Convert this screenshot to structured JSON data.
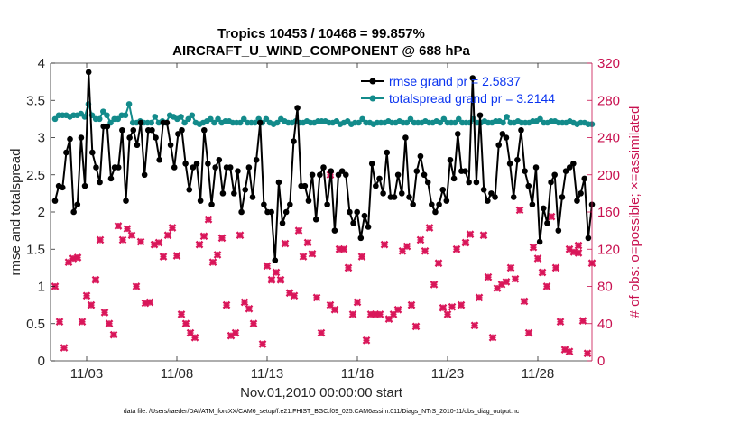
{
  "chart_data": {
    "type": "line",
    "title": [
      "Tropics 10453 / 10468 = 99.857%",
      "AIRCRAFT_U_WIND_COMPONENT @ 688 hPa"
    ],
    "xlabel": "Nov.01,2010 00:00:00 start",
    "ylabel_left": "rmse and totalspread",
    "ylabel_right": "# of obs: o=possible; ×=assimilated",
    "footnote": "data file: /Users/raeder/DAI/ATM_forcXX/CAM6_setup/f.e21.FHIST_BGC.f09_025.CAM6assim.011/Diags_NTrS_2010-11/obs_diag_output.nc",
    "x_ticks": [
      {
        "label": "11/03",
        "day": 3
      },
      {
        "label": "11/08",
        "day": 8
      },
      {
        "label": "11/13",
        "day": 13
      },
      {
        "label": "11/18",
        "day": 18
      },
      {
        "label": "11/23",
        "day": 23
      },
      {
        "label": "11/28",
        "day": 28
      }
    ],
    "xlim": [
      1,
      31
    ],
    "ylim_left": [
      0,
      4
    ],
    "ylim_right": [
      0,
      320
    ],
    "y_ticks_left": [
      "0",
      "0.5",
      "1",
      "1.5",
      "2",
      "2.5",
      "3",
      "3.5",
      "4"
    ],
    "y_ticks_right": [
      "0",
      "40",
      "80",
      "120",
      "160",
      "200",
      "240",
      "280",
      "320"
    ],
    "colors": {
      "rmse": "#000000",
      "spread": "#138b8b",
      "obs": "#d9175a",
      "right_axis": "#c8104f",
      "legend_text": "#0a34f0"
    },
    "legend": [
      {
        "name": "rmse",
        "label": "rmse grand pr = 2.5837"
      },
      {
        "name": "spread",
        "label": "totalspread grand pr = 3.2144"
      }
    ],
    "series": {
      "rmse": [
        2.15,
        2.35,
        2.33,
        2.8,
        2.98,
        2.0,
        2.1,
        3.0,
        2.35,
        3.88,
        2.8,
        2.6,
        2.4,
        3.15,
        3.15,
        2.45,
        2.6,
        2.6,
        3.1,
        2.15,
        3.0,
        3.1,
        2.9,
        3.2,
        2.5,
        3.1,
        3.1,
        3.0,
        2.7,
        3.2,
        3.2,
        2.9,
        2.6,
        3.05,
        3.1,
        2.65,
        2.3,
        2.6,
        2.65,
        2.15,
        3.1,
        2.65,
        2.1,
        2.6,
        2.7,
        2.25,
        2.6,
        2.6,
        2.25,
        2.55,
        2.0,
        2.3,
        2.6,
        2.2,
        2.7,
        3.2,
        2.1,
        2.0,
        2.0,
        1.35,
        2.4,
        1.85,
        2.0,
        2.1,
        2.95,
        3.4,
        2.35,
        2.35,
        2.15,
        2.5,
        1.9,
        2.5,
        2.6,
        2.1,
        2.55,
        1.75,
        2.5,
        2.55,
        2.5,
        2.0,
        1.85,
        2.0,
        1.65,
        1.95,
        1.8,
        2.65,
        2.35,
        2.45,
        2.25,
        2.8,
        2.2,
        2.2,
        2.5,
        2.25,
        3.0,
        2.2,
        2.1,
        2.55,
        2.75,
        2.5,
        2.4,
        2.1,
        2.0,
        2.1,
        2.3,
        2.15,
        2.7,
        2.45,
        3.05,
        2.55,
        2.55,
        2.4,
        3.8,
        2.4,
        3.3,
        2.3,
        2.15,
        2.25,
        2.2,
        2.9,
        3.05,
        3.0,
        2.65,
        2.2,
        2.7,
        3.1,
        2.55,
        2.35,
        2.1,
        2.6,
        1.6,
        2.05,
        1.85,
        2.4,
        2.5,
        1.75,
        2.2,
        2.55,
        2.6,
        2.65,
        2.15,
        2.25,
        2.45,
        1.65,
        2.1
      ],
      "spread": [
        3.25,
        3.3,
        3.3,
        3.3,
        3.28,
        3.3,
        3.3,
        3.32,
        3.28,
        3.45,
        3.3,
        3.25,
        3.25,
        3.35,
        3.3,
        3.2,
        3.25,
        3.25,
        3.3,
        3.3,
        3.45,
        3.2,
        3.2,
        3.22,
        3.2,
        3.2,
        3.2,
        3.28,
        3.2,
        3.22,
        3.2,
        3.3,
        3.28,
        3.25,
        3.28,
        3.2,
        3.25,
        3.3,
        3.2,
        3.18,
        3.2,
        3.22,
        3.25,
        3.2,
        3.25,
        3.2,
        3.22,
        3.22,
        3.2,
        3.2,
        3.2,
        3.25,
        3.2,
        3.2,
        3.2,
        3.25,
        3.2,
        3.25,
        3.2,
        3.18,
        3.2,
        3.25,
        3.22,
        3.2,
        3.2,
        3.22,
        3.2,
        3.2,
        3.22,
        3.2,
        3.2,
        3.22,
        3.22,
        3.22,
        3.2,
        3.2,
        3.22,
        3.18,
        3.2,
        3.22,
        3.18,
        3.2,
        3.2,
        3.25,
        3.2,
        3.2,
        3.18,
        3.2,
        3.2,
        3.2,
        3.22,
        3.2,
        3.2,
        3.22,
        3.2,
        3.2,
        3.25,
        3.2,
        3.2,
        3.2,
        3.22,
        3.2,
        3.2,
        3.22,
        3.2,
        3.25,
        3.2,
        3.2,
        3.2,
        3.25,
        3.2,
        3.2,
        3.2,
        3.25,
        3.2,
        3.2,
        3.22,
        3.2,
        3.2,
        3.22,
        3.22,
        3.2,
        3.28,
        3.2,
        3.2,
        3.22,
        3.2,
        3.2,
        3.2,
        3.22,
        3.22,
        3.25,
        3.2,
        3.2,
        3.22,
        3.22,
        3.2,
        3.2,
        3.2,
        3.22,
        3.2,
        3.18,
        3.2,
        3.2,
        3.18,
        3.18
      ],
      "obs": [
        [
          1.25,
          80
        ],
        [
          1.5,
          42
        ],
        [
          1.75,
          14
        ],
        [
          2.0,
          106
        ],
        [
          2.25,
          110
        ],
        [
          2.5,
          111
        ],
        [
          2.75,
          42
        ],
        [
          3.0,
          70
        ],
        [
          3.25,
          60
        ],
        [
          3.5,
          87
        ],
        [
          3.75,
          130
        ],
        [
          4.0,
          52
        ],
        [
          4.25,
          40
        ],
        [
          4.5,
          28
        ],
        [
          4.75,
          145
        ],
        [
          5.0,
          130
        ],
        [
          5.25,
          142
        ],
        [
          5.5,
          135
        ],
        [
          5.75,
          80
        ],
        [
          6.0,
          128
        ],
        [
          6.25,
          62
        ],
        [
          6.5,
          63
        ],
        [
          6.75,
          125
        ],
        [
          7.0,
          127
        ],
        [
          7.25,
          112
        ],
        [
          7.5,
          135
        ],
        [
          7.75,
          143
        ],
        [
          8.0,
          113
        ],
        [
          8.25,
          50
        ],
        [
          8.5,
          40
        ],
        [
          8.75,
          30
        ],
        [
          9.0,
          25
        ],
        [
          9.25,
          125
        ],
        [
          9.5,
          134
        ],
        [
          9.75,
          152
        ],
        [
          10.0,
          106
        ],
        [
          10.25,
          114
        ],
        [
          10.5,
          132
        ],
        [
          10.75,
          60
        ],
        [
          11.0,
          27
        ],
        [
          11.25,
          30
        ],
        [
          11.5,
          135
        ],
        [
          11.75,
          63
        ],
        [
          12.0,
          56
        ],
        [
          12.25,
          40
        ],
        [
          12.75,
          18
        ],
        [
          13.0,
          102
        ],
        [
          13.25,
          87
        ],
        [
          13.5,
          95
        ],
        [
          13.75,
          87
        ],
        [
          14.0,
          126
        ],
        [
          14.25,
          73
        ],
        [
          14.5,
          70
        ],
        [
          14.75,
          140
        ],
        [
          15.0,
          112
        ],
        [
          15.25,
          127
        ],
        [
          15.5,
          115
        ],
        [
          15.75,
          68
        ],
        [
          16.0,
          30
        ],
        [
          16.5,
          60
        ],
        [
          16.75,
          55
        ],
        [
          17.0,
          120
        ],
        [
          17.25,
          120
        ],
        [
          17.5,
          100
        ],
        [
          17.75,
          50
        ],
        [
          18.0,
          63
        ],
        [
          18.25,
          112
        ],
        [
          18.5,
          22
        ],
        [
          18.75,
          50
        ],
        [
          19.0,
          50
        ],
        [
          19.25,
          50
        ],
        [
          19.5,
          125
        ],
        [
          19.75,
          45
        ],
        [
          20.0,
          50
        ],
        [
          20.25,
          55
        ],
        [
          20.5,
          118
        ],
        [
          20.75,
          123
        ],
        [
          21.0,
          60
        ],
        [
          21.25,
          37
        ],
        [
          21.5,
          130
        ],
        [
          21.75,
          118
        ],
        [
          22.0,
          143
        ],
        [
          22.25,
          82
        ],
        [
          22.5,
          105
        ],
        [
          22.75,
          57
        ],
        [
          23.0,
          50
        ],
        [
          23.25,
          58
        ],
        [
          23.5,
          120
        ],
        [
          23.75,
          60
        ],
        [
          24.0,
          127
        ],
        [
          24.25,
          136
        ],
        [
          24.5,
          38
        ],
        [
          24.75,
          68
        ],
        [
          25.0,
          135
        ],
        [
          25.25,
          90
        ],
        [
          25.5,
          25
        ],
        [
          25.75,
          78
        ],
        [
          26.0,
          82
        ],
        [
          26.25,
          85
        ],
        [
          26.5,
          100
        ],
        [
          26.75,
          88
        ],
        [
          27.0,
          162
        ],
        [
          27.25,
          64
        ],
        [
          27.5,
          30
        ],
        [
          27.75,
          122
        ],
        [
          28.0,
          110
        ],
        [
          28.25,
          95
        ],
        [
          28.5,
          80
        ],
        [
          28.75,
          155
        ],
        [
          29.0,
          100
        ],
        [
          29.25,
          42
        ],
        [
          29.5,
          12
        ],
        [
          29.75,
          10
        ],
        [
          30.0,
          117
        ],
        [
          30.25,
          124
        ],
        [
          30.5,
          43
        ],
        [
          30.75,
          8
        ],
        [
          31.0,
          105
        ]
      ],
      "obs_left_axis_extra": [
        [
          16.5,
          2.5
        ],
        [
          29.75,
          1.5
        ],
        [
          30.25,
          1.45
        ]
      ]
    }
  }
}
